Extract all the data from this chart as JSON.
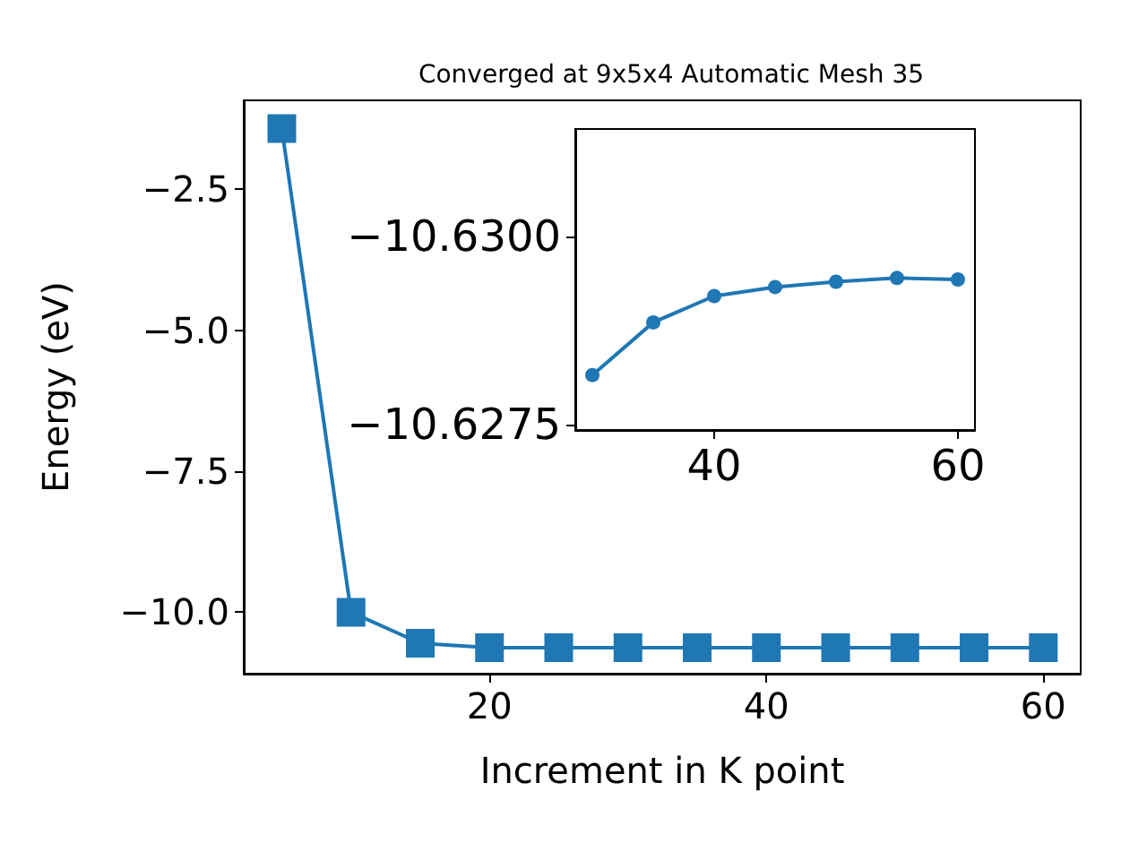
{
  "chart_data": [
    {
      "type": "line",
      "title": "Converged at 9x5x4 Automatic Mesh 35",
      "xlabel": "Increment in K point",
      "ylabel": "Energy (eV)",
      "x": [
        5,
        10,
        15,
        20,
        25,
        30,
        35,
        40,
        45,
        50,
        55,
        60
      ],
      "series": [
        {
          "color": "#1f77b4",
          "values": [
            -1.42,
            -10.0,
            -10.55,
            -10.63,
            -10.63,
            -10.63,
            -10.63,
            -10.63,
            -10.63,
            -10.63,
            -10.63,
            -10.63
          ]
        }
      ],
      "marker": "square",
      "line_style": "solid",
      "xlim": [
        2.25,
        62.7
      ],
      "ylim": [
        -11.09,
        -0.92
      ],
      "xticks": [
        20,
        40,
        60
      ],
      "yticks": [
        {
          "value": -10.0,
          "label": "−10.0"
        },
        {
          "value": -7.5,
          "label": "−7.5"
        },
        {
          "value": -5.0,
          "label": "−5.0"
        },
        {
          "value": -2.5,
          "label": "−2.5"
        }
      ]
    },
    {
      "type": "line",
      "x": [
        30,
        35,
        40,
        45,
        50,
        55,
        60
      ],
      "series": [
        {
          "color": "#1f77b4",
          "values": [
            -10.62816,
            -10.62886,
            -10.62921,
            -10.62933,
            -10.6294,
            -10.62945,
            -10.62943
          ]
        }
      ],
      "marker": "circle",
      "line_style": "solid",
      "xlim": [
        28.6,
        61.4
      ],
      "ylim": [
        -10.62743,
        -10.63143
      ],
      "xticks": [
        40,
        60
      ],
      "yticks": [
        {
          "value": -10.6275,
          "label": "−10.6275"
        },
        {
          "value": -10.63,
          "label": "−10.6300"
        }
      ]
    }
  ]
}
